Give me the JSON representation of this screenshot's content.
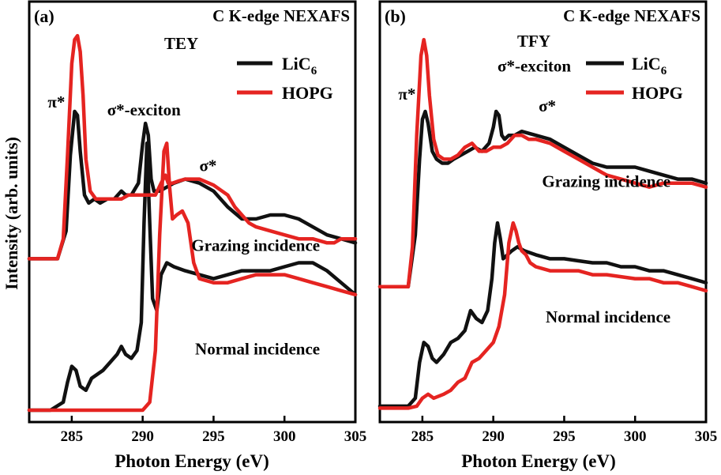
{
  "figure": {
    "ylabel": "Intensity (arb. units)",
    "colors": {
      "LiC6": "#111111",
      "HOPG": "#e52421"
    }
  },
  "chart_data": [
    {
      "type": "line",
      "panel": "(a)",
      "title_line1": "C K-edge NEXAFS",
      "title_line2": "TEY",
      "xlabel": "Photon Energy (eV)",
      "ylabel": "Intensity (arb. units)",
      "xlim": [
        282,
        305
      ],
      "ylim": [
        0,
        10
      ],
      "xticks": [
        285,
        290,
        295,
        300,
        305
      ],
      "xtick_labels": [
        "285",
        "290",
        "295",
        "300",
        "305"
      ],
      "legend": {
        "position": "top-right",
        "entries": [
          "LiC6",
          "HOPG"
        ],
        "labels": [
          "LiC",
          "HOPG"
        ],
        "subscripts": [
          "6",
          ""
        ]
      },
      "annotations": [
        {
          "text": "π*",
          "x": 283.3,
          "y": 7.7
        },
        {
          "text": "σ*-exciton",
          "x": 287.5,
          "y": 7.5
        },
        {
          "text": "σ*",
          "x": 294.0,
          "y": 6.1
        },
        {
          "text": "Grazing incidence",
          "x": 302.5,
          "y": 4.1
        },
        {
          "text": "Normal incidence",
          "x": 302.5,
          "y": 1.5
        }
      ],
      "series": [
        {
          "name": "LiC6 Grazing incidence",
          "group": "Grazing incidence",
          "sample": "LiC6",
          "x": [
            282,
            284,
            284.6,
            284.9,
            285.2,
            285.4,
            285.6,
            285.9,
            286.2,
            286.6,
            287,
            287.5,
            288,
            288.5,
            288.8,
            289.2,
            289.7,
            290,
            290.2,
            290.4,
            290.6,
            290.8,
            291.2,
            291.7,
            292.2,
            293,
            294,
            295,
            296,
            297,
            298,
            299,
            300,
            301,
            302,
            303,
            304,
            305
          ],
          "y": [
            3.9,
            3.9,
            4.6,
            6.5,
            7.6,
            7.5,
            6.6,
            5.5,
            5.3,
            5.4,
            5.3,
            5.4,
            5.4,
            5.6,
            5.5,
            5.5,
            5.8,
            6.8,
            7.3,
            7.0,
            5.9,
            5.6,
            5.6,
            5.7,
            5.8,
            5.9,
            5.8,
            5.6,
            5.2,
            4.9,
            4.9,
            5.0,
            5.0,
            4.9,
            4.7,
            4.5,
            4.4,
            4.3
          ]
        },
        {
          "name": "HOPG Grazing incidence",
          "group": "Grazing incidence",
          "sample": "HOPG",
          "x": [
            282,
            284,
            284.4,
            284.7,
            285,
            285.2,
            285.4,
            285.6,
            285.8,
            286,
            286.3,
            286.7,
            287,
            287.5,
            288,
            288.5,
            289,
            289.6,
            290,
            290.5,
            290.9,
            291.3,
            291.6,
            291.8,
            292.1,
            292.5,
            293,
            294,
            295,
            296,
            296.5,
            297,
            297.5,
            298,
            299,
            300,
            301,
            302,
            303,
            303.5,
            304,
            305
          ],
          "y": [
            3.9,
            3.9,
            4.4,
            6.5,
            8.8,
            9.4,
            9.5,
            9.1,
            8.0,
            6.4,
            5.6,
            5.4,
            5.4,
            5.4,
            5.4,
            5.4,
            5.5,
            5.5,
            5.5,
            5.5,
            5.5,
            5.8,
            6.0,
            5.8,
            5.8,
            5.85,
            5.9,
            5.9,
            5.75,
            5.5,
            5.2,
            5.0,
            4.8,
            4.7,
            4.6,
            4.5,
            4.4,
            4.4,
            4.3,
            4.3,
            4.4,
            4.4
          ]
        },
        {
          "name": "LiC6 Normal incidence",
          "group": "Normal incidence",
          "sample": "LiC6",
          "x": [
            282,
            283.5,
            284.4,
            284.7,
            285,
            285.3,
            285.6,
            286,
            286.4,
            286.8,
            287.2,
            287.7,
            288.2,
            288.5,
            288.8,
            289.2,
            289.6,
            289.9,
            290.1,
            290.3,
            290.5,
            290.7,
            291,
            291.3,
            291.7,
            292.2,
            293,
            294,
            295,
            296,
            297,
            298,
            299,
            300,
            301,
            302,
            303,
            304,
            305
          ],
          "y": [
            0.1,
            0.1,
            0.3,
            0.8,
            1.2,
            1.1,
            0.7,
            0.6,
            0.9,
            1.0,
            1.1,
            1.3,
            1.5,
            1.7,
            1.5,
            1.4,
            1.6,
            2.3,
            4.8,
            6.8,
            4.8,
            2.9,
            2.6,
            3.5,
            3.8,
            3.7,
            3.6,
            3.5,
            3.4,
            3.5,
            3.6,
            3.6,
            3.6,
            3.7,
            3.8,
            3.8,
            3.6,
            3.3,
            3.0
          ]
        },
        {
          "name": "HOPG Normal incidence",
          "group": "Normal incidence",
          "sample": "HOPG",
          "x": [
            282,
            283.5,
            285,
            286,
            287,
            288,
            289,
            290,
            290.5,
            290.9,
            291.2,
            291.5,
            291.7,
            291.9,
            292.1,
            292.4,
            292.8,
            293.2,
            293.6,
            294,
            295,
            296,
            297,
            298,
            299,
            300,
            301,
            302,
            303,
            304,
            305
          ],
          "y": [
            0.1,
            0.1,
            0.1,
            0.1,
            0.1,
            0.1,
            0.1,
            0.1,
            0.3,
            1.6,
            4.5,
            6.6,
            6.8,
            5.7,
            4.9,
            5.0,
            5.1,
            4.8,
            3.8,
            3.4,
            3.3,
            3.3,
            3.4,
            3.5,
            3.5,
            3.5,
            3.4,
            3.3,
            3.2,
            3.1,
            3.0
          ]
        }
      ]
    },
    {
      "type": "line",
      "panel": "(b)",
      "title_line1": "C K-edge NEXAFS",
      "title_line2": "TFY",
      "xlabel": "Photon Energy (eV)",
      "ylabel": "",
      "xlim": [
        282,
        305
      ],
      "ylim": [
        0,
        10
      ],
      "xticks": [
        285,
        290,
        295,
        300,
        305
      ],
      "xtick_labels": [
        "285",
        "290",
        "295",
        "300",
        "305"
      ],
      "legend": {
        "position": "top-right",
        "entries": [
          "LiC6",
          "HOPG"
        ],
        "labels": [
          "LiC",
          "HOPG"
        ],
        "subscripts": [
          "6",
          ""
        ]
      },
      "annotations": [
        {
          "text": "π*",
          "x": 283.3,
          "y": 7.9
        },
        {
          "text": "σ*-exciton",
          "x": 290.3,
          "y": 8.6
        },
        {
          "text": "σ*",
          "x": 293.2,
          "y": 7.6
        },
        {
          "text": "Grazing incidence",
          "x": 302.5,
          "y": 5.7
        },
        {
          "text": "Normal incidence",
          "x": 302.5,
          "y": 2.3
        }
      ],
      "series": [
        {
          "name": "LiC6 Grazing incidence",
          "group": "Grazing incidence",
          "sample": "LiC6",
          "x": [
            282,
            284,
            284.5,
            284.8,
            285,
            285.2,
            285.4,
            285.7,
            286,
            286.4,
            286.8,
            287.2,
            287.7,
            288.2,
            288.7,
            289.2,
            289.7,
            290,
            290.2,
            290.4,
            290.6,
            290.8,
            291.1,
            291.5,
            292,
            293,
            294,
            295,
            296,
            297,
            298,
            299,
            300,
            301,
            302,
            303,
            304,
            305
          ],
          "y": [
            3.2,
            3.2,
            4.5,
            6.4,
            7.4,
            7.6,
            7.3,
            6.6,
            6.4,
            6.3,
            6.3,
            6.4,
            6.5,
            6.6,
            6.7,
            6.6,
            6.8,
            7.2,
            7.6,
            7.5,
            7.0,
            6.9,
            7.0,
            7.0,
            7.1,
            7.0,
            6.9,
            6.7,
            6.5,
            6.3,
            6.2,
            6.2,
            6.2,
            6.1,
            6.0,
            5.9,
            5.9,
            5.8
          ]
        },
        {
          "name": "HOPG Grazing incidence",
          "group": "Grazing incidence",
          "sample": "HOPG",
          "x": [
            282,
            284,
            284.3,
            284.6,
            284.9,
            285.1,
            285.3,
            285.5,
            285.8,
            286.1,
            286.5,
            287,
            287.5,
            288,
            288.5,
            289,
            289.5,
            290,
            290.5,
            291,
            291.5,
            292,
            292.5,
            293,
            294,
            295,
            296,
            297,
            298,
            299,
            300,
            301,
            302,
            303,
            304,
            305
          ],
          "y": [
            3.2,
            3.2,
            4.2,
            7.0,
            9.0,
            9.4,
            9.0,
            8.0,
            6.9,
            6.5,
            6.4,
            6.4,
            6.5,
            6.7,
            6.8,
            6.6,
            6.6,
            6.7,
            6.7,
            6.8,
            7.0,
            7.0,
            6.9,
            6.9,
            6.8,
            6.6,
            6.4,
            6.2,
            6.0,
            5.9,
            5.8,
            5.7,
            5.8,
            5.8,
            5.8,
            5.7
          ]
        },
        {
          "name": "LiC6 Normal incidence",
          "group": "Normal incidence",
          "sample": "LiC6",
          "x": [
            282,
            284,
            284.5,
            284.8,
            285.1,
            285.4,
            285.7,
            286,
            286.5,
            287,
            287.5,
            288,
            288.4,
            288.8,
            289.2,
            289.6,
            289.9,
            290.1,
            290.3,
            290.5,
            290.7,
            291,
            291.3,
            291.7,
            292.2,
            293,
            294,
            295,
            296,
            297,
            298,
            299,
            300,
            301,
            302,
            303,
            304,
            305
          ],
          "y": [
            0.2,
            0.2,
            0.4,
            1.3,
            1.8,
            1.7,
            1.4,
            1.3,
            1.5,
            1.8,
            1.9,
            2.1,
            2.6,
            2.4,
            2.3,
            2.6,
            3.4,
            4.3,
            4.8,
            4.4,
            3.9,
            4.0,
            4.1,
            4.2,
            4.1,
            4.0,
            3.9,
            3.9,
            3.85,
            3.8,
            3.8,
            3.7,
            3.7,
            3.6,
            3.6,
            3.5,
            3.4,
            3.3
          ]
        },
        {
          "name": "HOPG Normal incidence",
          "group": "Normal incidence",
          "sample": "HOPG",
          "x": [
            282,
            284,
            284.6,
            285,
            285.4,
            285.8,
            286.5,
            287,
            287.5,
            288,
            288.5,
            289,
            289.5,
            290,
            290.4,
            290.8,
            291.1,
            291.4,
            291.6,
            291.8,
            292,
            292.3,
            292.6,
            293,
            294,
            295,
            296,
            297,
            298,
            299,
            300,
            301,
            302,
            303,
            304,
            305
          ],
          "y": [
            0.15,
            0.15,
            0.2,
            0.4,
            0.5,
            0.4,
            0.5,
            0.6,
            0.8,
            0.9,
            1.3,
            1.4,
            1.6,
            1.8,
            2.2,
            3.0,
            4.3,
            4.8,
            4.6,
            4.3,
            4.1,
            4.0,
            3.8,
            3.7,
            3.6,
            3.6,
            3.6,
            3.5,
            3.5,
            3.45,
            3.4,
            3.4,
            3.3,
            3.3,
            3.2,
            3.1
          ]
        }
      ]
    }
  ]
}
